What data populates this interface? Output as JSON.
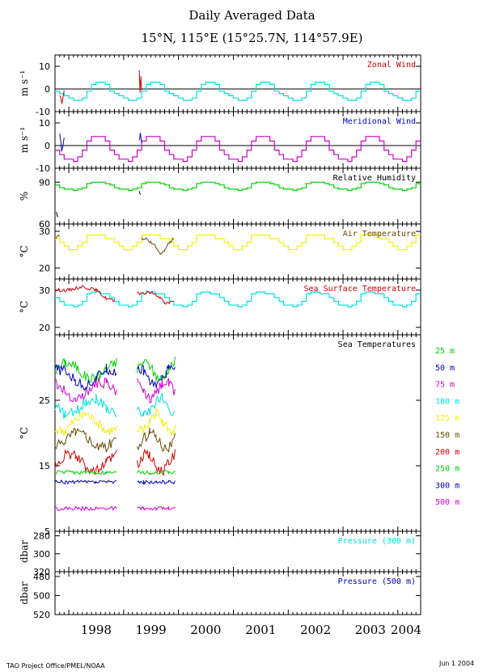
{
  "title": "Daily Averaged Data",
  "subtitle": "15°N, 115°E (15°25.7N, 114°57.9E)",
  "footer_left": "TAO Project Office/PMEL/NOAA",
  "footer_right": "Jun  1 2004",
  "chart_data": {
    "type": "line",
    "x_tick_labels": [
      "1998",
      "1999",
      "2000",
      "2001",
      "2002",
      "2003",
      "2004"
    ],
    "x_tick_dates": [
      "1998-01-01",
      "1999-01-01",
      "2000-01-01",
      "2001-01-01",
      "2002-01-01",
      "2003-01-01",
      "2004-01-01"
    ],
    "xlim": [
      "1997-10-01",
      "2004-06-01"
    ],
    "panels": [
      {
        "key": "zonal_wind",
        "label": "Zonal Wind",
        "label_color": "#d00000",
        "ylabel": "m s⁻¹",
        "yticks": [
          10,
          0,
          -10
        ],
        "ylim": [
          -10,
          15
        ],
        "zero_line": true,
        "climatology_color": "#00e0e0",
        "climatology_monthly": [
          -4,
          -5,
          -5,
          -4,
          -1,
          2,
          3,
          3,
          2,
          -1,
          -2,
          -3
        ],
        "observed_color": "#d00000",
        "observed": [
          {
            "x": "1997-11-01",
            "y": -3
          },
          {
            "x": "1997-11-15",
            "y": -6
          },
          {
            "x": "1997-12-01",
            "y": -1
          }
        ],
        "observed_b": [
          {
            "x": "1999-04-15",
            "y": 8
          },
          {
            "x": "1999-04-20",
            "y": -2
          },
          {
            "x": "1999-04-25",
            "y": 5
          },
          {
            "x": "1999-05-01",
            "y": -1
          }
        ]
      },
      {
        "key": "meridional_wind",
        "label": "Meridional Wind",
        "label_color": "#0000c0",
        "ylabel": "m s⁻¹",
        "yticks": [
          10,
          0,
          -10
        ],
        "ylim": [
          -10,
          15
        ],
        "zero_line": true,
        "climatology_color": "#d000d0",
        "climatology_monthly": [
          -6,
          -7,
          -5,
          -2,
          2,
          4,
          4,
          4,
          2,
          -2,
          -4,
          -6
        ],
        "observed_color": "#0000c0",
        "observed": [
          {
            "x": "1997-11-01",
            "y": 5
          },
          {
            "x": "1997-11-15",
            "y": -2
          },
          {
            "x": "1997-12-01",
            "y": 3
          }
        ],
        "observed_b": [
          {
            "x": "1999-04-15",
            "y": 2
          },
          {
            "x": "1999-04-22",
            "y": 5
          },
          {
            "x": "1999-05-01",
            "y": 1
          }
        ]
      },
      {
        "key": "relative_humidity",
        "label": "Relative Humidity",
        "label_color": "#000000",
        "ylabel": "%",
        "yticks": [
          90,
          60
        ],
        "ylim": [
          60,
          100
        ],
        "zero_line": false,
        "climatology_color": "#00d000",
        "climatology_monthly": [
          85,
          84,
          85,
          86,
          89,
          90,
          90,
          90,
          89,
          88,
          86,
          85
        ],
        "observed_color": "#000000",
        "observed": [
          {
            "x": "1997-10-10",
            "y": 68
          },
          {
            "x": "1997-10-20",
            "y": 64
          }
        ],
        "observed_b": [
          {
            "x": "1999-04-15",
            "y": 83
          },
          {
            "x": "1999-04-25",
            "y": 81
          }
        ]
      },
      {
        "key": "air_temperature",
        "label": "Air Temperature",
        "label_color": "#6b4a00",
        "ylabel": "°C",
        "yticks": [
          30,
          20
        ],
        "ylim": [
          17,
          32
        ],
        "zero_line": false,
        "climatology_color": "#f0f000",
        "climatology_monthly": [
          25,
          25,
          26,
          27,
          29,
          29,
          29,
          29,
          28,
          28,
          27,
          26
        ],
        "observed_color": "#6b4a00",
        "observed": [
          {
            "x": "1997-10-01",
            "y": 28
          },
          {
            "x": "1997-11-01",
            "y": 29
          }
        ],
        "observed_b": [
          {
            "x": "1999-05-01",
            "y": 28
          },
          {
            "x": "1999-06-01",
            "y": 28
          },
          {
            "x": "1999-07-01",
            "y": 27
          },
          {
            "x": "1999-08-01",
            "y": 26
          },
          {
            "x": "1999-09-01",
            "y": 24
          },
          {
            "x": "1999-10-01",
            "y": 25
          },
          {
            "x": "1999-11-01",
            "y": 27
          },
          {
            "x": "1999-12-01",
            "y": 28
          }
        ]
      },
      {
        "key": "sea_surface_temperature",
        "label": "Sea Surface Temperature",
        "label_color": "#d00000",
        "ylabel": "°C",
        "yticks": [
          30,
          20
        ],
        "ylim": [
          18,
          33
        ],
        "zero_line": false,
        "climatology_color": "#00e0e0",
        "climatology_monthly": [
          26,
          25.5,
          26,
          27,
          29,
          29.5,
          29.5,
          29,
          29,
          28,
          27,
          26
        ],
        "observed_color": "#d00000",
        "observed": [
          {
            "x": "1997-10-01",
            "y": 30
          },
          {
            "x": "1998-01-01",
            "y": 30
          },
          {
            "x": "1998-04-01",
            "y": 31
          },
          {
            "x": "1998-07-01",
            "y": 30
          },
          {
            "x": "1998-09-01",
            "y": 28
          },
          {
            "x": "1998-11-01",
            "y": 27
          }
        ],
        "observed_b": [
          {
            "x": "1999-04-01",
            "y": 29
          },
          {
            "x": "1999-07-01",
            "y": 29.5
          },
          {
            "x": "1999-09-01",
            "y": 28
          },
          {
            "x": "1999-10-01",
            "y": 26.5
          },
          {
            "x": "1999-12-01",
            "y": 27
          }
        ]
      }
    ],
    "sea_temperatures": {
      "label": "Sea Temperatures",
      "ylabel": "°C",
      "yticks": [
        25,
        15,
        5
      ],
      "ylim": [
        5,
        35
      ],
      "depths": [
        {
          "name": "25 m",
          "color": "#00d000",
          "level": 29.5
        },
        {
          "name": "50 m",
          "color": "#0000c0",
          "level": 28.5
        },
        {
          "name": "75 m",
          "color": "#d000d0",
          "level": 26.5
        },
        {
          "name": "100 m",
          "color": "#00e0e0",
          "level": 24
        },
        {
          "name": "125 m",
          "color": "#f0f000",
          "level": 21.5
        },
        {
          "name": "150 m",
          "color": "#6b4a00",
          "level": 19
        },
        {
          "name": "200 m",
          "color": "#d00000",
          "level": 15.5
        },
        {
          "name": "250 m",
          "color": "#00d000",
          "level": 14
        },
        {
          "name": "300 m",
          "color": "#0000c0",
          "level": 12.5
        },
        {
          "name": "500 m",
          "color": "#d000d0",
          "level": 8.5
        }
      ],
      "segments": [
        [
          "1997-10-01",
          "1998-11-15"
        ],
        [
          "1999-04-01",
          "1999-12-10"
        ]
      ]
    },
    "pressure_panels": [
      {
        "label": "Pressure (300 m)",
        "label_color": "#00e0e0",
        "ylabel": "dbar",
        "yticks": [
          280,
          300,
          320
        ],
        "ylim": [
          320,
          275
        ]
      },
      {
        "label": "Pressure (500 m)",
        "label_color": "#0000c0",
        "ylabel": "dbar",
        "yticks": [
          480,
          500,
          520
        ],
        "ylim": [
          520,
          475
        ]
      }
    ]
  }
}
